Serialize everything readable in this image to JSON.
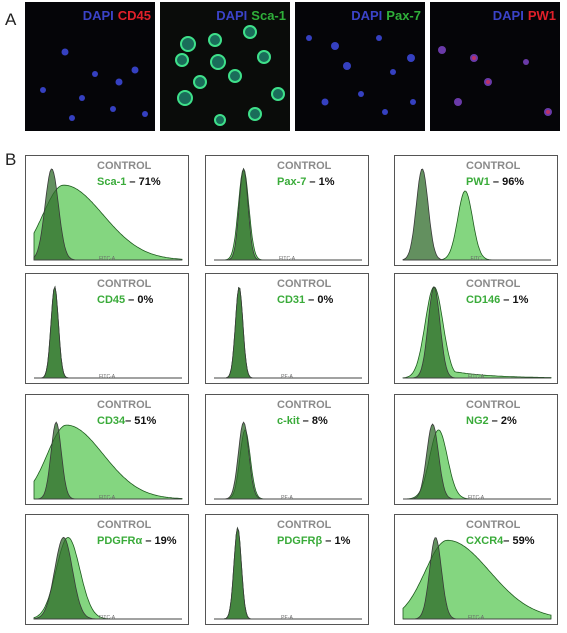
{
  "panel_a_label": "A",
  "panel_b_label": "B",
  "colors": {
    "dapi": "#3b43c8",
    "red": "#e0202a",
    "green": "#2fb03a",
    "control": "#8a8a8a",
    "stain": "#3aab3a"
  },
  "micrographs": [
    {
      "dapi": "DAPI",
      "marker": "CD45",
      "marker_color": "red"
    },
    {
      "dapi": "DAPI",
      "marker": "Sca-1",
      "marker_color": "green"
    },
    {
      "dapi": "DAPI",
      "marker": "Pax-7",
      "marker_color": "green"
    },
    {
      "dapi": "DAPI",
      "marker": "PW1",
      "marker_color": "red"
    }
  ],
  "chart_data": {
    "type": "area",
    "description_type": "flow cytometry histograms (control vs stained overlay)",
    "panels": [
      {
        "control": "CONTROL",
        "marker": "Sca-1",
        "sep": " – ",
        "percent": "71%",
        "axis": "FITC-A"
      },
      {
        "control": "CONTROL",
        "marker": "Pax-7",
        "sep": " – ",
        "percent": "1%",
        "axis": "FITC-A"
      },
      {
        "control": "CONTROL",
        "marker": "PW1",
        "sep": " – ",
        "percent": "96%",
        "axis": "FITC"
      },
      {
        "control": "CONTROL",
        "marker": "CD45",
        "sep": " – ",
        "percent": "0%",
        "axis": "FITC-A"
      },
      {
        "control": "CONTROL",
        "marker": "CD31",
        "sep": " – ",
        "percent": "0%",
        "axis": "PE-A"
      },
      {
        "control": "CONTROL",
        "marker": "CD146",
        "sep": " – ",
        "percent": "1%",
        "axis": "FITC-A"
      },
      {
        "control": "CONTROL",
        "marker": "CD34",
        "sep": "– ",
        "percent": "51%",
        "axis": "FITC-A"
      },
      {
        "control": "CONTROL",
        "marker": "c-kit",
        "sep": " – ",
        "percent": "8%",
        "axis": "PE-A"
      },
      {
        "control": "CONTROL",
        "marker": "NG2",
        "sep": " – ",
        "percent": "2%",
        "axis": "FITC-A"
      },
      {
        "control": "CONTROL",
        "marker": "PDGFRα",
        "sep": " – ",
        "percent": "19%",
        "axis": "FITC-A"
      },
      {
        "control": "CONTROL",
        "marker": "PDGFRβ",
        "sep": " – ",
        "percent": "1%",
        "axis": "PE-A"
      },
      {
        "control": "CONTROL",
        "marker": "CXCR4",
        "sep": "– ",
        "percent": "59%",
        "axis": "FITC-A"
      }
    ]
  }
}
